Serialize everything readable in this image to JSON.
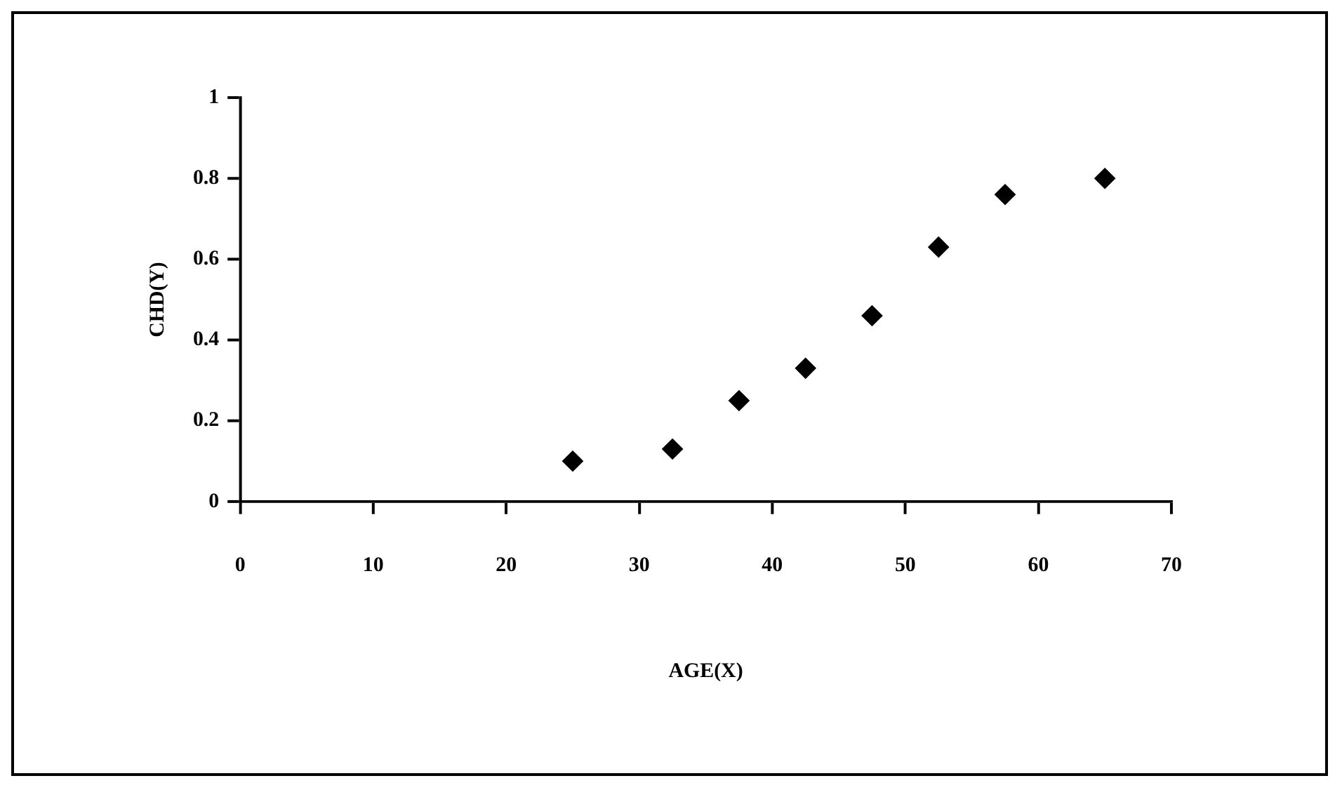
{
  "chart_data": {
    "type": "scatter",
    "xlabel": "AGE(X)",
    "ylabel": "CHD(Y)",
    "x": [
      25,
      32.5,
      37.5,
      42.5,
      47.5,
      52.5,
      57.5,
      65
    ],
    "values": [
      0.1,
      0.13,
      0.25,
      0.33,
      0.46,
      0.63,
      0.76,
      0.8
    ],
    "color": "#000000",
    "marker": "diamond",
    "xlim": [
      0,
      70
    ],
    "xticks": [
      0,
      10,
      20,
      30,
      40,
      50,
      60,
      70
    ],
    "ylim": [
      0,
      1
    ],
    "yticks": [
      0,
      0.2,
      0.4,
      0.6,
      0.8,
      1
    ]
  }
}
